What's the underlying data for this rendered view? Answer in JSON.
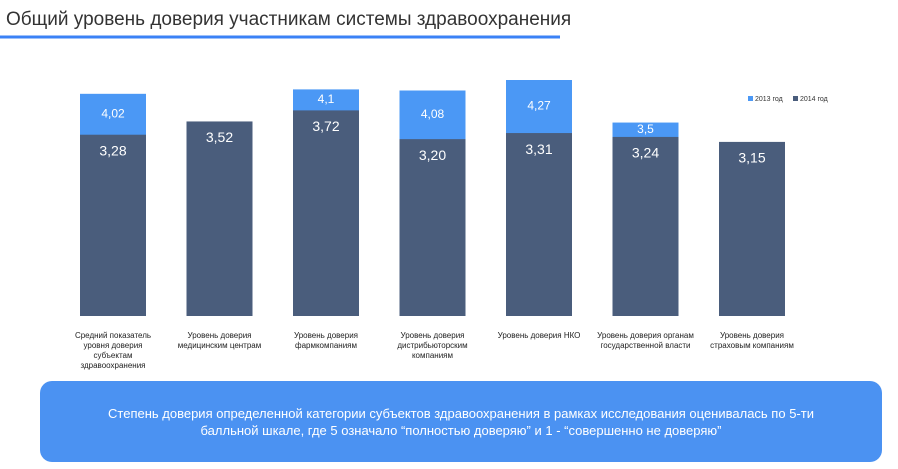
{
  "chart_data": {
    "type": "bar",
    "title": "Общий уровень доверия участникам системы здравоохранения",
    "categories": [
      "Средний показатель уровня доверия субъектам здравоохранения",
      "Уровень доверия медицинским центрам",
      "Уровень доверия фармкомпаниям",
      "Уровень доверия дистрибьюторским компаниям",
      "Уровень доверия НКО",
      "Уровень доверия органам государственной власти",
      "Уровень доверия страховым компаниям"
    ],
    "series": [
      {
        "name": "2013 год",
        "color": "#4b98f5",
        "values": [
          4.02,
          null,
          4.1,
          4.08,
          4.27,
          3.5,
          null
        ],
        "value_labels": [
          "4,02",
          null,
          "4,1",
          "4,08",
          "4,27",
          "3,5",
          null
        ]
      },
      {
        "name": "2014 год",
        "color": "#4a5d7c",
        "values": [
          3.28,
          3.52,
          3.72,
          3.2,
          3.31,
          3.24,
          3.15
        ],
        "value_labels": [
          "3,28",
          "3,52",
          "3,72",
          "3,20",
          "3,31",
          "3,24",
          "3,15"
        ]
      }
    ],
    "legend": "top-right",
    "note": "Степень доверия определенной категории субъектов здравоохранения в рамках исследования оценивалась по 5-ти балльной шкале, где 5 означало “полностью доверяю” и 1 - “совершенно не доверяю”"
  }
}
